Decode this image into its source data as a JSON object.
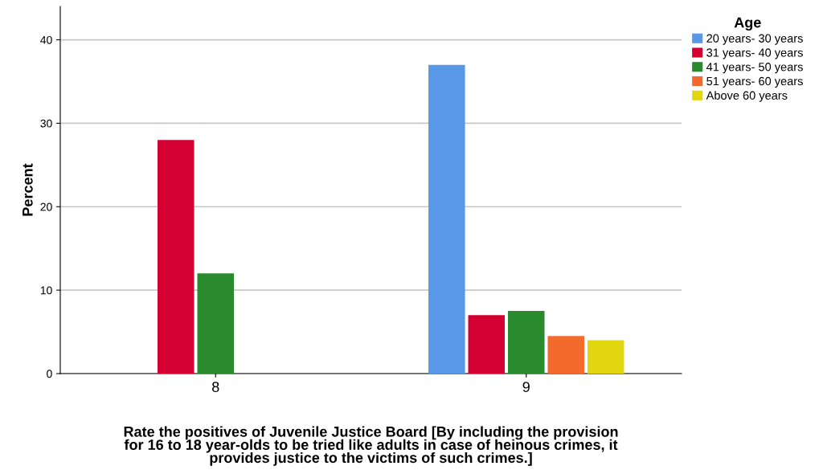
{
  "chart_data": {
    "type": "bar",
    "xlabel": "Rate the positives of Juvenile Justice Board [By including the provision\nfor 16 to 18 year-olds to be tried like adults in case of heinous crimes, it\nprovides justice to the victims of such crimes.]",
    "ylabel": "Percent",
    "legend_title": "Age",
    "categories": [
      "8",
      "9"
    ],
    "series": [
      {
        "name": "20 years- 30 years",
        "color": "#5898e6",
        "values": [
          null,
          37
        ]
      },
      {
        "name": "31 years- 40 years",
        "color": "#d50032",
        "values": [
          28,
          7
        ]
      },
      {
        "name": "41 years- 50 years",
        "color": "#2a8a2e",
        "values": [
          12,
          7.5
        ]
      },
      {
        "name": "51 years- 60 years",
        "color": "#f26a2c",
        "values": [
          null,
          4.5
        ]
      },
      {
        "name": "Above 60 years",
        "color": "#e2d60f",
        "values": [
          null,
          4
        ]
      }
    ],
    "ylim": [
      0,
      44
    ],
    "yticks": [
      0,
      10,
      20,
      30,
      40
    ],
    "grid": "y",
    "legend": "top right"
  }
}
